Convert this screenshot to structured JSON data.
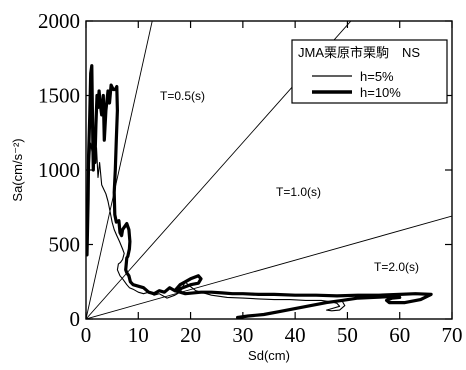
{
  "chart_data": {
    "type": "line",
    "xlabel": "Sd(cm)",
    "ylabel": "Sa(cm/s⁻²)",
    "xlim": [
      0,
      70
    ],
    "ylim": [
      0,
      2000
    ],
    "xticks": [
      0,
      10,
      20,
      30,
      40,
      50,
      60,
      70
    ],
    "yticks": [
      0,
      500,
      1000,
      1500,
      2000
    ],
    "xtick_labels": [
      "0",
      "10",
      "20",
      "30",
      "40",
      "50",
      "60",
      "70"
    ],
    "ytick_labels": [
      "0",
      "500",
      "1000",
      "1500",
      "2000"
    ],
    "grid": false,
    "legend": {
      "title": "JMA栗原市栗駒　NS",
      "placement": "top-right",
      "entries": [
        "h=5%",
        "h=10%"
      ]
    },
    "period_lines": [
      {
        "label": "T=0.5(s)",
        "period": 0.5
      },
      {
        "label": "T=1.0(s)",
        "period": 1.0
      },
      {
        "label": "T=2.0(s)",
        "period": 2.0
      }
    ],
    "series": [
      {
        "name": "h=5%",
        "style": "thin",
        "color": "#000000",
        "points": [
          [
            0.2,
            430
          ],
          [
            0.4,
            750
          ],
          [
            0.6,
            1000
          ],
          [
            0.9,
            1180
          ],
          [
            1.2,
            1110
          ],
          [
            1.5,
            1250
          ],
          [
            1.8,
            1050
          ],
          [
            2.0,
            1150
          ],
          [
            2.3,
            950
          ],
          [
            2.6,
            1050
          ],
          [
            3.0,
            900
          ],
          [
            3.4,
            870
          ],
          [
            3.8,
            840
          ],
          [
            4.2,
            790
          ],
          [
            4.6,
            720
          ],
          [
            5.0,
            650
          ],
          [
            5.4,
            600
          ],
          [
            5.9,
            560
          ],
          [
            6.4,
            520
          ],
          [
            7.0,
            470
          ],
          [
            7.3,
            440
          ],
          [
            7.0,
            400
          ],
          [
            6.6,
            380
          ],
          [
            6.2,
            370
          ],
          [
            6.0,
            330
          ],
          [
            6.5,
            290
          ],
          [
            7.0,
            270
          ],
          [
            7.8,
            230
          ],
          [
            8.3,
            210
          ],
          [
            9.0,
            200
          ],
          [
            10.0,
            180
          ],
          [
            11.0,
            170
          ],
          [
            12.0,
            180
          ],
          [
            13.0,
            160
          ],
          [
            14.0,
            170
          ],
          [
            15.0,
            150
          ],
          [
            15.5,
            140
          ],
          [
            17.0,
            160
          ],
          [
            18.0,
            180
          ],
          [
            18.7,
            230
          ],
          [
            19.0,
            250
          ],
          [
            19.5,
            230
          ],
          [
            21.0,
            190
          ],
          [
            24.0,
            160
          ],
          [
            27.0,
            145
          ],
          [
            30.0,
            140
          ],
          [
            33.0,
            135
          ],
          [
            36.0,
            130
          ],
          [
            39.0,
            130
          ],
          [
            42.0,
            125
          ],
          [
            45.0,
            125
          ],
          [
            47.0,
            115
          ],
          [
            48.0,
            105
          ],
          [
            48.5,
            85
          ],
          [
            47.0,
            70
          ],
          [
            46.0,
            60
          ],
          [
            47.0,
            55
          ],
          [
            48.5,
            60
          ],
          [
            49.5,
            90
          ],
          [
            49.0,
            120
          ]
        ]
      },
      {
        "name": "h=10%",
        "style": "thick",
        "color": "#000000",
        "points": [
          [
            0.2,
            430
          ],
          [
            0.4,
            800
          ],
          [
            0.5,
            1100
          ],
          [
            0.7,
            1350
          ],
          [
            0.9,
            1650
          ],
          [
            1.1,
            1700
          ],
          [
            1.2,
            1450
          ],
          [
            1.3,
            1200
          ],
          [
            1.4,
            1000
          ],
          [
            1.5,
            1130
          ],
          [
            1.7,
            1050
          ],
          [
            1.9,
            1300
          ],
          [
            2.1,
            1500
          ],
          [
            2.3,
            1420
          ],
          [
            2.5,
            1530
          ],
          [
            2.7,
            1450
          ],
          [
            3.0,
            1370
          ],
          [
            3.3,
            1500
          ],
          [
            3.5,
            1200
          ],
          [
            3.8,
            1400
          ],
          [
            4.2,
            1530
          ],
          [
            4.5,
            1450
          ],
          [
            4.8,
            1570
          ],
          [
            5.2,
            1540
          ],
          [
            5.6,
            1540
          ],
          [
            5.9,
            1560
          ],
          [
            6.0,
            1400
          ],
          [
            5.8,
            1200
          ],
          [
            5.6,
            1000
          ],
          [
            5.4,
            850
          ],
          [
            5.5,
            700
          ],
          [
            5.8,
            650
          ],
          [
            6.3,
            660
          ],
          [
            6.5,
            580
          ],
          [
            6.8,
            560
          ],
          [
            7.0,
            600
          ],
          [
            7.4,
            620
          ],
          [
            7.8,
            640
          ],
          [
            8.2,
            600
          ],
          [
            8.4,
            520
          ],
          [
            8.3,
            470
          ],
          [
            8.0,
            420
          ],
          [
            7.8,
            410
          ],
          [
            7.6,
            330
          ],
          [
            7.8,
            310
          ],
          [
            8.2,
            290
          ],
          [
            8.5,
            250
          ],
          [
            9.0,
            230
          ],
          [
            10.0,
            220
          ],
          [
            11.0,
            210
          ],
          [
            12.0,
            180
          ],
          [
            13.0,
            170
          ],
          [
            14.0,
            190
          ],
          [
            15.0,
            180
          ],
          [
            16.0,
            210
          ],
          [
            17.0,
            190
          ],
          [
            18.0,
            230
          ],
          [
            19.0,
            250
          ],
          [
            20.0,
            270
          ],
          [
            21.5,
            290
          ],
          [
            22.0,
            270
          ],
          [
            21.5,
            240
          ],
          [
            20.0,
            230
          ],
          [
            18.5,
            210
          ],
          [
            17.0,
            190
          ],
          [
            19.0,
            170
          ],
          [
            22.0,
            180
          ],
          [
            24.0,
            180
          ],
          [
            26.0,
            175
          ],
          [
            28.0,
            170
          ],
          [
            30.0,
            170
          ],
          [
            33.0,
            165
          ],
          [
            36.0,
            165
          ],
          [
            40.0,
            160
          ],
          [
            44.0,
            160
          ],
          [
            48.0,
            155
          ],
          [
            52.0,
            160
          ],
          [
            56.0,
            160
          ],
          [
            60.0,
            165
          ],
          [
            63.0,
            170
          ],
          [
            66.0,
            165
          ],
          [
            64.0,
            130
          ],
          [
            61.0,
            110
          ],
          [
            58.0,
            110
          ],
          [
            57.5,
            125
          ],
          [
            58.5,
            140
          ],
          [
            60.0,
            145
          ],
          [
            58.0,
            150
          ],
          [
            55.0,
            145
          ],
          [
            52.0,
            140
          ],
          [
            49.0,
            125
          ],
          [
            46.0,
            110
          ],
          [
            43.0,
            90
          ],
          [
            40.0,
            70
          ],
          [
            37.0,
            50
          ],
          [
            34.0,
            30
          ],
          [
            31.0,
            20
          ],
          [
            29.0,
            10
          ]
        ]
      }
    ]
  }
}
